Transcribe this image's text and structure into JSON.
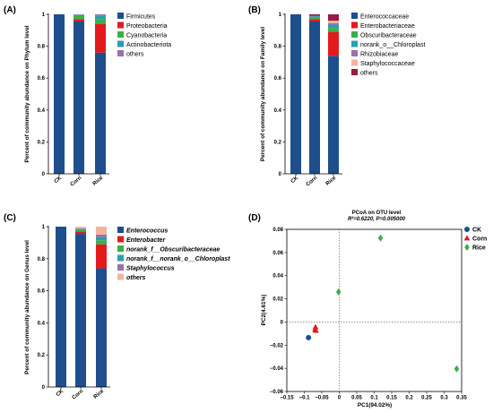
{
  "chart_data": [
    {
      "panel": "(A)",
      "type": "bar",
      "stacked": true,
      "categories": [
        "CK",
        "Corn",
        "Rice"
      ],
      "xlabel": "",
      "ylabel": "Percent of community abundance on Phylum level",
      "ylim": [
        0,
        1
      ],
      "yticks": [
        "0",
        "0.2",
        "0.4",
        "0.6",
        "0.8",
        "1"
      ],
      "legend_position": "right",
      "series": [
        {
          "name": "Firmicutes",
          "color": "#1f4e8c",
          "values": [
            1.0,
            0.955,
            0.76
          ]
        },
        {
          "name": "Proteobacteria",
          "color": "#e31a1c",
          "values": [
            0.0,
            0.015,
            0.18
          ]
        },
        {
          "name": "Cyanobacteria",
          "color": "#3dae4a",
          "values": [
            0.0,
            0.025,
            0.03
          ]
        },
        {
          "name": "Actinobacteriota",
          "color": "#2a9db3",
          "values": [
            0.0,
            0.003,
            0.02
          ]
        },
        {
          "name": "others",
          "color": "#9b6fb0",
          "values": [
            0.0,
            0.002,
            0.01
          ]
        }
      ]
    },
    {
      "panel": "(B)",
      "type": "bar",
      "stacked": true,
      "categories": [
        "CK",
        "Corn",
        "Rice"
      ],
      "xlabel": "",
      "ylabel": "Percent of community abundance on Family level",
      "ylim": [
        0,
        1
      ],
      "yticks": [
        "0",
        "0.2",
        "0.4",
        "0.6",
        "0.8",
        "1"
      ],
      "legend_position": "right",
      "series": [
        {
          "name": "Enterococcaceae",
          "color": "#1f4e8c",
          "values": [
            1.0,
            0.955,
            0.74
          ]
        },
        {
          "name": "Enterobacteriaceae",
          "color": "#e31a1c",
          "values": [
            0.0,
            0.015,
            0.15
          ]
        },
        {
          "name": "Obscuribacteraceae",
          "color": "#3dae4a",
          "values": [
            0.0,
            0.01,
            0.025
          ]
        },
        {
          "name": "norank_o__Chloroplast",
          "color": "#2a9db3",
          "values": [
            0.0,
            0.008,
            0.02
          ]
        },
        {
          "name": "Rhizobiaceae",
          "color": "#9b6fb0",
          "values": [
            0.0,
            0.002,
            0.01
          ]
        },
        {
          "name": "Staphylococcaceae",
          "color": "#f4b49c",
          "values": [
            0.0,
            0.0,
            0.015
          ]
        },
        {
          "name": "others",
          "color": "#9a1b3b",
          "values": [
            0.0,
            0.01,
            0.04
          ]
        }
      ]
    },
    {
      "panel": "(C)",
      "type": "bar",
      "stacked": true,
      "categories": [
        "CK",
        "Corn",
        "Rice"
      ],
      "xlabel": "",
      "ylabel": "Percent of community abundance on Genus level",
      "ylim": [
        0,
        1
      ],
      "yticks": [
        "0",
        "0.2",
        "0.4",
        "0.6",
        "0.8",
        "1"
      ],
      "legend_position": "right",
      "series": [
        {
          "name": "Enterococcus",
          "color": "#1f4e8c",
          "values": [
            1.0,
            0.955,
            0.74
          ]
        },
        {
          "name": "Enterobacter",
          "color": "#e31a1c",
          "values": [
            0.0,
            0.015,
            0.15
          ]
        },
        {
          "name": "norank_f__Obscuribacteraceae",
          "color": "#3dae4a",
          "values": [
            0.0,
            0.01,
            0.025
          ]
        },
        {
          "name": "norank_f__norank_o__Chloroplast",
          "color": "#2a9db3",
          "values": [
            0.0,
            0.008,
            0.02
          ]
        },
        {
          "name": "Staphylococcus",
          "color": "#9b6fb0",
          "values": [
            0.0,
            0.0,
            0.015
          ]
        },
        {
          "name": "others",
          "color": "#f4b49c",
          "values": [
            0.0,
            0.012,
            0.05
          ]
        }
      ]
    },
    {
      "panel": "(D)",
      "type": "scatter",
      "title": "PCoA on OTU level",
      "subtitle": "R²=0.6220, P=0.005000",
      "xlabel": "PC1(94.02%)",
      "ylabel": "PC2(4.61%)",
      "xlim": [
        -0.15,
        0.35
      ],
      "ylim": [
        -0.06,
        0.08
      ],
      "xticks": [
        "−0.15",
        "−0.1",
        "−0.05",
        "0",
        "0.05",
        "0.1",
        "0.15",
        "0.2",
        "0.25",
        "0.3",
        "0.35"
      ],
      "yticks": [
        "−0.06",
        "−0.04",
        "−0.02",
        "0",
        "0.02",
        "0.04",
        "0.06",
        "0.08"
      ],
      "legend_position": "top-right",
      "series": [
        {
          "name": "CK",
          "color": "#1f4e8c",
          "marker": "circle",
          "points": [
            [
              -0.088,
              -0.0135
            ]
          ]
        },
        {
          "name": "Corn",
          "color": "#e31a1c",
          "marker": "triangle",
          "points": [
            [
              -0.068,
              -0.0045
            ],
            [
              -0.067,
              -0.0075
            ],
            [
              -0.069,
              -0.0065
            ]
          ]
        },
        {
          "name": "Rice",
          "color": "#3dae4a",
          "marker": "diamond",
          "points": [
            [
              -0.002,
              0.026
            ],
            [
              0.118,
              0.0725
            ],
            [
              0.336,
              -0.0405
            ]
          ]
        }
      ]
    }
  ]
}
